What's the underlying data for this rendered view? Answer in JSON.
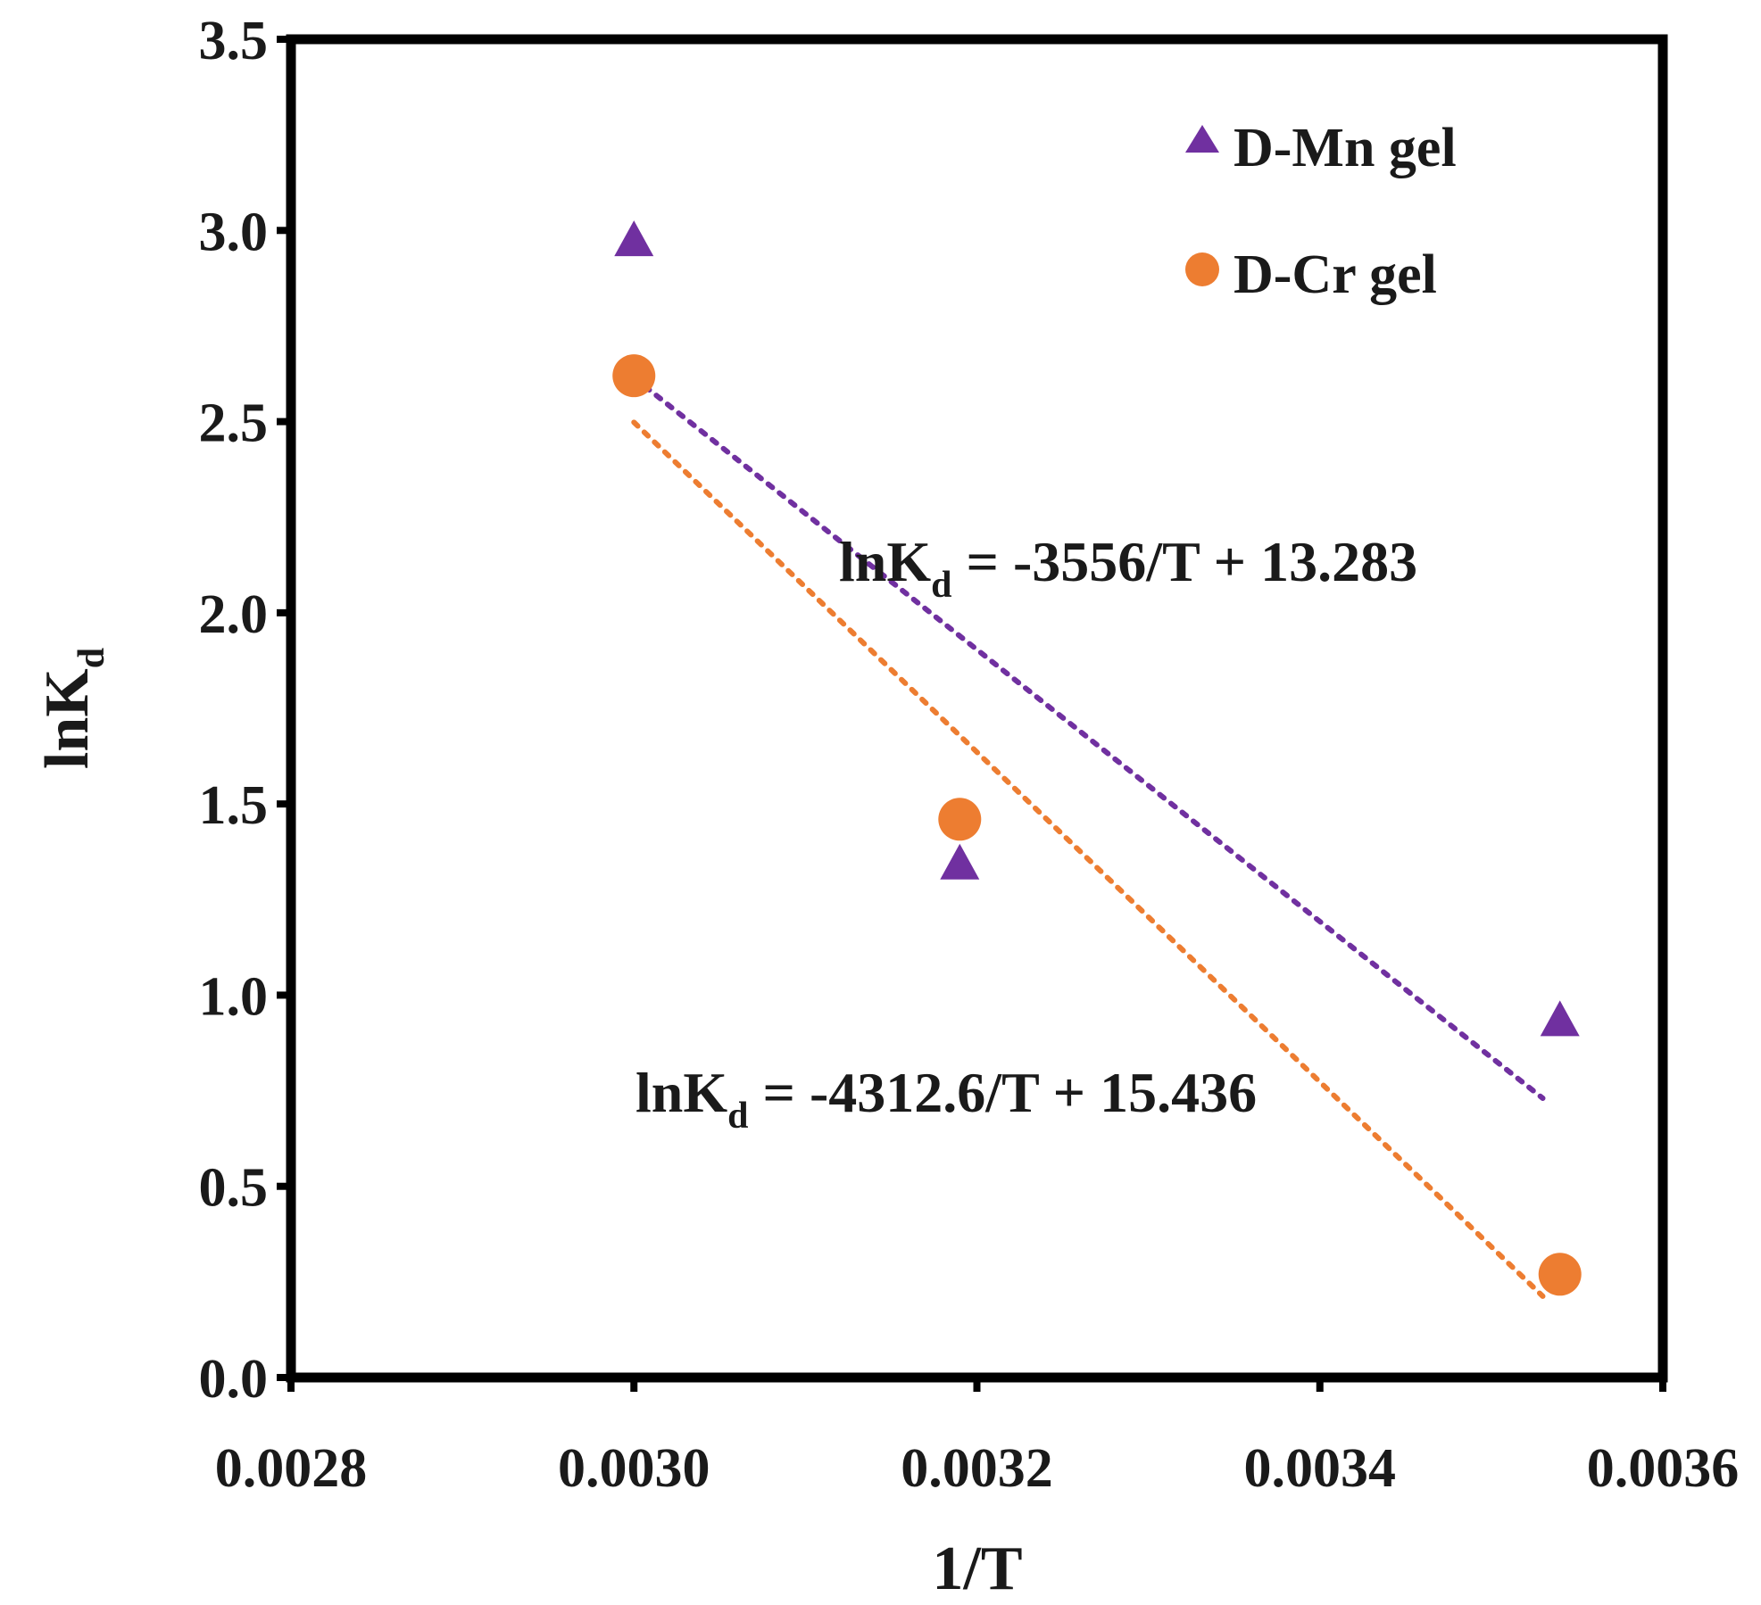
{
  "chart_data": {
    "type": "scatter",
    "title": "",
    "xlabel": "1/T",
    "ylabel": {
      "main": "lnK",
      "subscript": "d"
    },
    "xlim": [
      0.0028,
      0.0036
    ],
    "ylim": [
      0.0,
      3.5
    ],
    "x_ticks": [
      "0.0028",
      "0.0030",
      "0.0032",
      "0.0034",
      "0.0036"
    ],
    "y_ticks": [
      "0.0",
      "0.5",
      "1.0",
      "1.5",
      "2.0",
      "2.5",
      "3.0",
      "3.5"
    ],
    "grid": false,
    "legend_position": "top-right",
    "series": [
      {
        "name": "D-Mn gel",
        "marker": "triangle",
        "color": "#7030a0",
        "x": [
          0.003,
          0.00319,
          0.00354
        ],
        "y": [
          2.97,
          1.34,
          0.93
        ],
        "trendline": {
          "x_range": [
            0.003,
            0.00353
          ],
          "slope": -3556,
          "intercept": 13.283,
          "equation": {
            "lhs": "lnK",
            "sub": "d",
            "rhs": " = -3556/T + 13.283"
          }
        }
      },
      {
        "name": "D-Cr gel",
        "marker": "circle",
        "color": "#ed7d31",
        "x": [
          0.003,
          0.00319,
          0.00354
        ],
        "y": [
          2.62,
          1.46,
          0.27
        ],
        "trendline": {
          "x_range": [
            0.003,
            0.00353
          ],
          "slope": -4312.6,
          "intercept": 15.436,
          "equation": {
            "lhs": "lnK",
            "sub": "d",
            "rhs": " = -4312.6/T + 15.436"
          }
        }
      }
    ]
  }
}
